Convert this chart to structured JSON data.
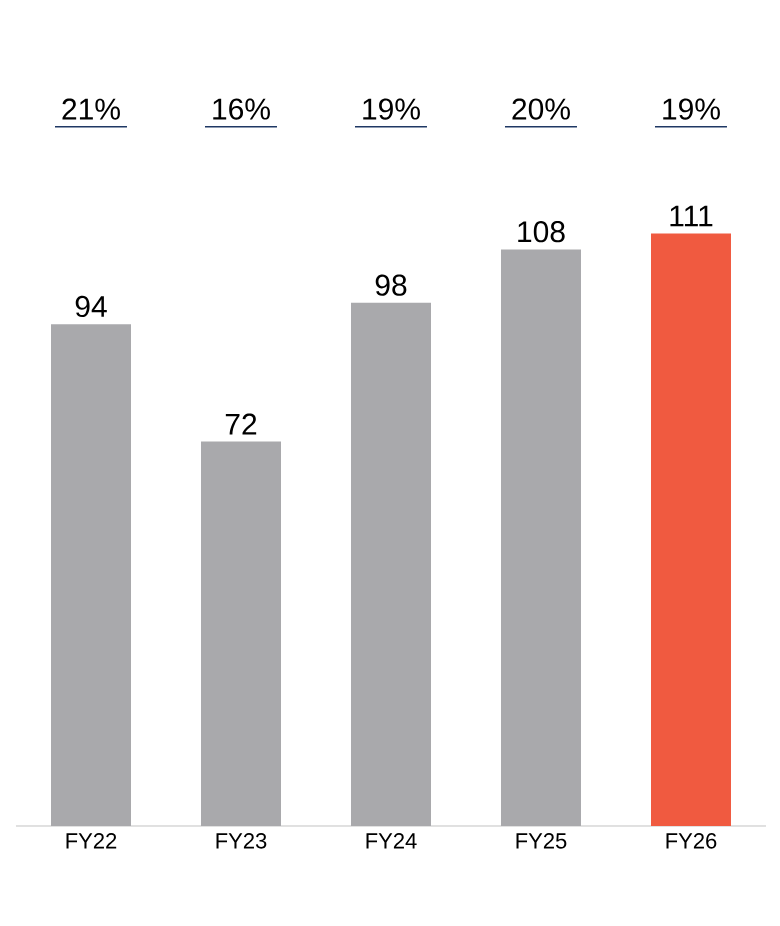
{
  "chart_data": {
    "type": "bar",
    "categories": [
      "FY22",
      "FY23",
      "FY24",
      "FY25",
      "FY26"
    ],
    "values": [
      94,
      72,
      98,
      108,
      111
    ],
    "colors": [
      "#a9a9ac",
      "#a9a9ac",
      "#a9a9ac",
      "#a9a9ac",
      "#f05a40"
    ],
    "data_labels": true,
    "annotations": [
      "21%",
      "16%",
      "19%",
      "20%",
      "19%"
    ]
  }
}
